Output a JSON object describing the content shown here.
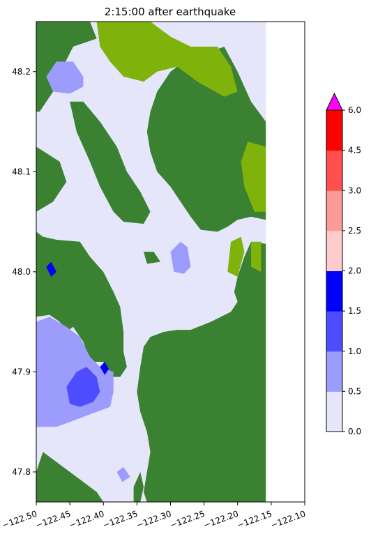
{
  "chart_data": {
    "type": "heatmap",
    "title": "2:15:00 after earthquake",
    "xlabel": "",
    "ylabel": "",
    "xlim": [
      -122.5,
      -122.1
    ],
    "ylim": [
      47.77,
      48.25
    ],
    "x_ticks": [
      -122.5,
      -122.45,
      -122.4,
      -122.35,
      -122.3,
      -122.25,
      -122.2,
      -122.15,
      -122.1
    ],
    "x_tick_labels": [
      "−122.50",
      "−122.45",
      "−122.40",
      "−122.35",
      "−122.30",
      "−122.25",
      "−122.20",
      "−122.15",
      "−122.10"
    ],
    "y_ticks": [
      47.8,
      47.9,
      48.0,
      48.1,
      48.2
    ],
    "y_tick_labels": [
      "47.8",
      "47.9",
      "48.0",
      "48.1",
      "48.2"
    ],
    "data_east_edge": -122.158,
    "colors": {
      "land": "#3a8231",
      "upland": "#7fb20a",
      "water_low": "#e6e6fa"
    },
    "colorbar": {
      "levels": [
        0.0,
        0.5,
        1.0,
        1.5,
        2.0,
        2.5,
        3.0,
        4.5,
        6.0
      ],
      "level_labels": [
        "0.0",
        "0.5",
        "1.0",
        "1.5",
        "2.0",
        "2.5",
        "3.0",
        "4.5",
        "6.0"
      ],
      "colors": [
        "#e6e6fa",
        "#9c9cfd",
        "#4d4dff",
        "#0000ff",
        "#ffcccc",
        "#ff9a9a",
        "#ff4f4f",
        "#ff0000"
      ],
      "extend_max_color": "#ff00ff",
      "extend": "max"
    },
    "regions": {
      "land": [
        [
          [
            -122.5,
            48.25
          ],
          [
            -122.42,
            48.25
          ],
          [
            -122.41,
            48.233
          ],
          [
            -122.445,
            48.225
          ],
          [
            -122.46,
            48.205
          ],
          [
            -122.47,
            48.185
          ],
          [
            -122.495,
            48.16
          ],
          [
            -122.5,
            48.16
          ]
        ],
        [
          [
            -122.5,
            48.125
          ],
          [
            -122.465,
            48.11
          ],
          [
            -122.455,
            48.09
          ],
          [
            -122.475,
            48.07
          ],
          [
            -122.5,
            48.06
          ]
        ],
        [
          [
            -122.5,
            48.04
          ],
          [
            -122.49,
            48.035
          ],
          [
            -122.47,
            48.032
          ],
          [
            -122.435,
            48.03
          ],
          [
            -122.42,
            48.015
          ],
          [
            -122.4,
            48.0
          ],
          [
            -122.385,
            47.98
          ],
          [
            -122.375,
            47.965
          ],
          [
            -122.37,
            47.94
          ],
          [
            -122.37,
            47.92
          ],
          [
            -122.365,
            47.905
          ],
          [
            -122.375,
            47.895
          ],
          [
            -122.385,
            47.895
          ],
          [
            -122.393,
            47.902
          ],
          [
            -122.4,
            47.91
          ],
          [
            -122.42,
            47.91
          ],
          [
            -122.43,
            47.93
          ],
          [
            -122.445,
            47.945
          ],
          [
            -122.455,
            47.94
          ],
          [
            -122.465,
            47.95
          ],
          [
            -122.48,
            47.957
          ],
          [
            -122.5,
            47.955
          ]
        ],
        [
          [
            -122.5,
            47.785
          ],
          [
            -122.495,
            47.775
          ],
          [
            -122.49,
            47.77
          ],
          [
            -122.5,
            47.77
          ]
        ],
        [
          [
            -122.45,
            48.17
          ],
          [
            -122.44,
            48.14
          ],
          [
            -122.42,
            48.11
          ],
          [
            -122.405,
            48.085
          ],
          [
            -122.385,
            48.06
          ],
          [
            -122.37,
            48.05
          ],
          [
            -122.34,
            48.048
          ],
          [
            -122.33,
            48.06
          ],
          [
            -122.345,
            48.08
          ],
          [
            -122.365,
            48.1
          ],
          [
            -122.38,
            48.125
          ],
          [
            -122.405,
            48.15
          ],
          [
            -122.43,
            48.17
          ]
        ],
        [
          [
            -122.33,
            48.16
          ],
          [
            -122.32,
            48.18
          ],
          [
            -122.3,
            48.2
          ],
          [
            -122.28,
            48.21
          ],
          [
            -122.22,
            48.225
          ],
          [
            -122.2,
            48.2
          ],
          [
            -122.18,
            48.17
          ],
          [
            -122.158,
            48.15
          ],
          [
            -122.158,
            48.052
          ],
          [
            -122.18,
            48.055
          ],
          [
            -122.2,
            48.052
          ],
          [
            -122.215,
            48.045
          ],
          [
            -122.23,
            48.04
          ],
          [
            -122.255,
            48.042
          ],
          [
            -122.27,
            48.055
          ],
          [
            -122.285,
            48.07
          ],
          [
            -122.3,
            48.085
          ],
          [
            -122.32,
            48.1
          ],
          [
            -122.33,
            48.12
          ],
          [
            -122.335,
            48.14
          ]
        ],
        [
          [
            -122.158,
            48.028
          ],
          [
            -122.18,
            48.03
          ],
          [
            -122.19,
            48.015
          ],
          [
            -122.2,
            47.995
          ],
          [
            -122.205,
            47.98
          ],
          [
            -122.2,
            47.97
          ],
          [
            -122.21,
            47.96
          ],
          [
            -122.24,
            47.95
          ],
          [
            -122.27,
            47.942
          ],
          [
            -122.29,
            47.942
          ],
          [
            -122.31,
            47.94
          ],
          [
            -122.33,
            47.935
          ],
          [
            -122.34,
            47.925
          ],
          [
            -122.345,
            47.905
          ],
          [
            -122.35,
            47.88
          ],
          [
            -122.345,
            47.86
          ],
          [
            -122.335,
            47.84
          ],
          [
            -122.33,
            47.82
          ],
          [
            -122.335,
            47.8
          ],
          [
            -122.34,
            47.78
          ],
          [
            -122.335,
            47.77
          ],
          [
            -122.158,
            47.77
          ]
        ],
        [
          [
            -122.49,
            47.82
          ],
          [
            -122.47,
            47.81
          ],
          [
            -122.45,
            47.8
          ],
          [
            -122.43,
            47.79
          ],
          [
            -122.41,
            47.78
          ],
          [
            -122.4,
            47.77
          ],
          [
            -122.5,
            47.77
          ],
          [
            -122.5,
            47.8
          ]
        ],
        [
          [
            -122.355,
            47.785
          ],
          [
            -122.345,
            47.8
          ],
          [
            -122.34,
            47.785
          ],
          [
            -122.345,
            47.77
          ],
          [
            -122.355,
            47.77
          ]
        ],
        [
          [
            -122.34,
            48.02
          ],
          [
            -122.325,
            48.02
          ],
          [
            -122.315,
            48.01
          ],
          [
            -122.335,
            48.008
          ]
        ]
      ],
      "upland": [
        [
          [
            -122.41,
            48.25
          ],
          [
            -122.33,
            48.25
          ],
          [
            -122.3,
            48.235
          ],
          [
            -122.27,
            48.225
          ],
          [
            -122.23,
            48.225
          ],
          [
            -122.21,
            48.205
          ],
          [
            -122.2,
            48.18
          ],
          [
            -122.22,
            48.175
          ],
          [
            -122.26,
            48.19
          ],
          [
            -122.29,
            48.205
          ],
          [
            -122.32,
            48.2
          ],
          [
            -122.34,
            48.19
          ],
          [
            -122.37,
            48.195
          ],
          [
            -122.39,
            48.21
          ],
          [
            -122.405,
            48.225
          ]
        ],
        [
          [
            -122.185,
            48.13
          ],
          [
            -122.158,
            48.125
          ],
          [
            -122.158,
            48.06
          ],
          [
            -122.175,
            48.06
          ],
          [
            -122.19,
            48.085
          ],
          [
            -122.195,
            48.11
          ]
        ],
        [
          [
            -122.21,
            48.03
          ],
          [
            -122.195,
            48.035
          ],
          [
            -122.19,
            48.02
          ],
          [
            -122.2,
            47.995
          ],
          [
            -122.215,
            48.0
          ]
        ],
        [
          [
            -122.18,
            48.03
          ],
          [
            -122.165,
            48.03
          ],
          [
            -122.165,
            48.0
          ],
          [
            -122.18,
            48.005
          ]
        ]
      ],
      "water_levels": [
        {
          "level_index": 1,
          "polys": [
            [
              [
                -122.485,
                48.195
              ],
              [
                -122.47,
                48.21
              ],
              [
                -122.445,
                48.21
              ],
              [
                -122.43,
                48.195
              ],
              [
                -122.43,
                48.185
              ],
              [
                -122.45,
                48.178
              ],
              [
                -122.475,
                48.18
              ]
            ],
            [
              [
                -122.5,
                47.95
              ],
              [
                -122.48,
                47.955
              ],
              [
                -122.455,
                47.945
              ],
              [
                -122.435,
                47.935
              ],
              [
                -122.42,
                47.915
              ],
              [
                -122.405,
                47.905
              ],
              [
                -122.385,
                47.9
              ],
              [
                -122.385,
                47.88
              ],
              [
                -122.39,
                47.865
              ],
              [
                -122.41,
                47.86
              ],
              [
                -122.43,
                47.855
              ],
              [
                -122.45,
                47.85
              ],
              [
                -122.47,
                47.845
              ],
              [
                -122.5,
                47.845
              ]
            ],
            [
              [
                -122.3,
                48.02
              ],
              [
                -122.285,
                48.03
              ],
              [
                -122.275,
                48.025
              ],
              [
                -122.27,
                48.005
              ],
              [
                -122.28,
                47.998
              ],
              [
                -122.295,
                48.0
              ]
            ],
            [
              [
                -122.38,
                47.8
              ],
              [
                -122.37,
                47.805
              ],
              [
                -122.36,
                47.795
              ],
              [
                -122.372,
                47.79
              ]
            ]
          ]
        },
        {
          "level_index": 2,
          "polys": [
            [
              [
                -122.455,
                47.885
              ],
              [
                -122.44,
                47.9
              ],
              [
                -122.425,
                47.905
              ],
              [
                -122.41,
                47.895
              ],
              [
                -122.405,
                47.88
              ],
              [
                -122.415,
                47.87
              ],
              [
                -122.435,
                47.865
              ],
              [
                -122.45,
                47.868
              ]
            ]
          ]
        },
        {
          "level_index": 3,
          "polys": [
            [
              [
                -122.485,
                48.005
              ],
              [
                -122.478,
                48.01
              ],
              [
                -122.47,
                48.0
              ],
              [
                -122.478,
                47.995
              ]
            ],
            [
              [
                -122.405,
                47.905
              ],
              [
                -122.398,
                47.91
              ],
              [
                -122.392,
                47.903
              ],
              [
                -122.398,
                47.897
              ]
            ]
          ]
        }
      ]
    }
  }
}
